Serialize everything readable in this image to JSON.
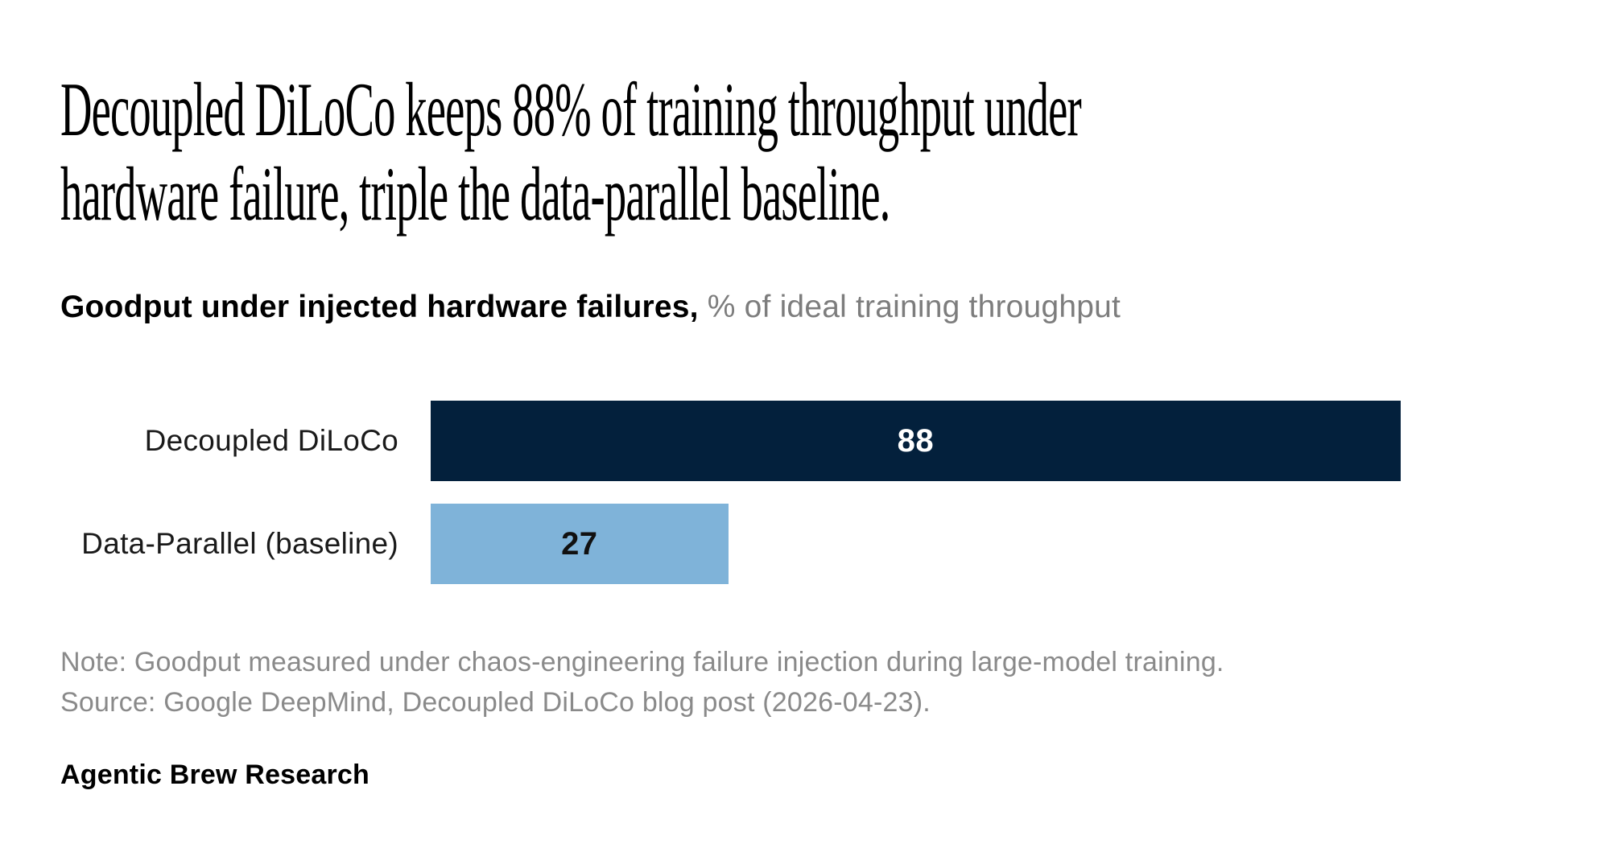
{
  "page": {
    "background": "#FFFFFF"
  },
  "headline": {
    "line1": "Decoupled DiLoCo keeps 88% of training throughput under",
    "line2": "hardware failure, triple the data-parallel baseline."
  },
  "subtitle": {
    "bold": "Goodput under injected hardware failures,",
    "rest": " % of ideal training throughput"
  },
  "chart_data": {
    "type": "bar",
    "orientation": "horizontal",
    "title": "Goodput under injected hardware failures",
    "unit": "% of ideal training throughput",
    "categories": [
      "Decoupled DiLoCo",
      "Data-Parallel (baseline)"
    ],
    "values": [
      88,
      27
    ],
    "xlabel": "",
    "ylabel": "",
    "xlim": [
      0,
      100
    ],
    "grid": false,
    "legend": false,
    "value_labels_shown": true,
    "bar_colors": [
      "#03203C",
      "#7FB3D9"
    ],
    "value_label_colors": [
      "#FFFFFF",
      "#111111"
    ]
  },
  "notes": {
    "note_line": "Note: Goodput measured under chaos-engineering failure injection during large-model training.",
    "source_line": "Source: Google DeepMind, Decoupled DiLoCo blog post (2026-04-23)."
  },
  "footer": {
    "brand": "Agentic Brew Research"
  },
  "colors": {
    "navy": "#03203C",
    "light_blue": "#7FB3D9",
    "headline_text": "#000000",
    "subtitle_gray": "#7D7D7D",
    "note_gray": "#8A8A8A"
  }
}
